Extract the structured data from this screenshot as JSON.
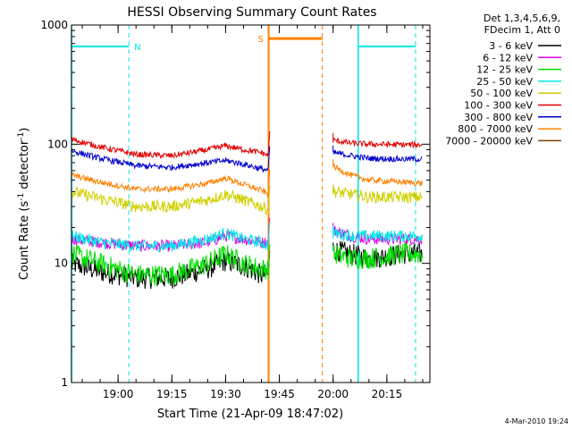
{
  "chart_data": {
    "type": "line",
    "title": "HESSI Observing Summary Count Rates",
    "xlabel": "Start Time (21-Apr-09 18:47:02)",
    "ylabel": "Count Rate (s⁻¹ detector⁻¹)",
    "ylabel_parts": {
      "base": "Count Rate (s",
      "exp1": "-1",
      "mid": " detector",
      "exp2": "-1",
      "end": ")"
    },
    "yscale": "log",
    "ylim": [
      1,
      1000
    ],
    "xlim": [
      "18:47",
      "20:27"
    ],
    "x_ticks": [
      "19:00",
      "19:15",
      "19:30",
      "19:45",
      "20:00",
      "20:15"
    ],
    "y_ticks": [
      "1",
      "10",
      "100",
      "1000"
    ],
    "footer_date": "4-Mar-2010 19:24",
    "legend": {
      "header": [
        "Det 1,3,4,5,6,9,",
        "FDecim 1, Att 0"
      ],
      "placement": "outside-right"
    },
    "series": [
      {
        "name": "3 - 6 keV",
        "color": "#000000",
        "x": [
          "18:47",
          "18:55",
          "19:05",
          "19:15",
          "19:25",
          "19:30",
          "19:35",
          "19:40",
          "19:42",
          "20:00",
          "20:05",
          "20:10",
          "20:20",
          "20:25"
        ],
        "y": [
          10,
          8.5,
          7.5,
          7.5,
          9,
          10.5,
          9.5,
          8,
          8,
          13,
          12,
          11,
          12,
          12
        ]
      },
      {
        "name": "6 - 12 keV",
        "color": "#e000e0",
        "x": [
          "18:47",
          "18:55",
          "19:05",
          "19:15",
          "19:25",
          "19:30",
          "19:35",
          "19:40",
          "19:42",
          "20:00",
          "20:05",
          "20:10",
          "20:20",
          "20:25"
        ],
        "y": [
          16,
          15,
          14,
          14,
          15,
          17,
          16,
          15,
          15,
          19,
          17,
          16,
          16,
          16
        ]
      },
      {
        "name": "12 - 25 keV",
        "color": "#00e000",
        "x": [
          "18:47",
          "18:55",
          "19:05",
          "19:15",
          "19:25",
          "19:30",
          "19:35",
          "19:40",
          "19:42",
          "20:00",
          "20:05",
          "20:10",
          "20:20",
          "20:25"
        ],
        "y": [
          12,
          10,
          8,
          8,
          10,
          12,
          10,
          9,
          9,
          12,
          11,
          11,
          12,
          12
        ]
      },
      {
        "name": "25 - 50 keV",
        "color": "#00e8e8",
        "x": [
          "18:47",
          "18:55",
          "19:05",
          "19:15",
          "19:25",
          "19:30",
          "19:35",
          "19:40",
          "19:42",
          "20:00",
          "20:05",
          "20:10",
          "20:20",
          "20:25"
        ],
        "y": [
          17,
          15,
          14,
          14,
          16,
          18,
          16,
          15,
          14,
          18,
          17,
          17,
          17,
          17
        ]
      },
      {
        "name": "50 - 100 keV",
        "color": "#d0d000",
        "x": [
          "18:47",
          "18:55",
          "19:05",
          "19:15",
          "19:25",
          "19:30",
          "19:35",
          "19:40",
          "19:42",
          "20:00",
          "20:05",
          "20:10",
          "20:20",
          "20:25"
        ],
        "y": [
          40,
          35,
          30,
          30,
          34,
          38,
          34,
          30,
          28,
          40,
          38,
          36,
          36,
          36
        ]
      },
      {
        "name": "100 - 300 keV",
        "color": "#e00000",
        "x": [
          "18:47",
          "18:55",
          "19:05",
          "19:15",
          "19:25",
          "19:30",
          "19:35",
          "19:40",
          "19:42",
          "20:00",
          "20:05",
          "20:10",
          "20:20",
          "20:25"
        ],
        "y": [
          110,
          95,
          82,
          80,
          90,
          97,
          90,
          85,
          80,
          108,
          102,
          100,
          99,
          99
        ]
      },
      {
        "name": "300 - 800 keV",
        "color": "#0000d0",
        "x": [
          "18:47",
          "18:55",
          "19:05",
          "19:15",
          "19:25",
          "19:30",
          "19:35",
          "19:40",
          "19:42",
          "20:00",
          "20:05",
          "20:10",
          "20:20",
          "20:25"
        ],
        "y": [
          88,
          76,
          66,
          64,
          70,
          73,
          68,
          62,
          60,
          85,
          80,
          76,
          75,
          75
        ]
      },
      {
        "name": "800 - 7000 keV",
        "color": "#ff8000",
        "x": [
          "18:47",
          "18:55",
          "19:05",
          "19:15",
          "19:25",
          "19:30",
          "19:35",
          "19:40",
          "19:42",
          "20:00",
          "20:05",
          "20:10",
          "20:20",
          "20:25"
        ],
        "y": [
          55,
          48,
          42,
          42,
          47,
          52,
          46,
          41,
          38,
          65,
          55,
          50,
          48,
          47
        ]
      },
      {
        "name": "7000 - 20000 keV",
        "color": "#804000",
        "x": [],
        "y": []
      }
    ],
    "annotations": [
      {
        "label": "N",
        "type": "night",
        "color": "#00e8e8",
        "ranges": [
          [
            "18:47",
            "19:03"
          ],
          [
            "20:07",
            "20:23"
          ]
        ]
      },
      {
        "label": "S",
        "type": "saa",
        "color": "#ff8000",
        "ranges": [
          [
            "19:42",
            "19:57"
          ]
        ]
      }
    ]
  }
}
